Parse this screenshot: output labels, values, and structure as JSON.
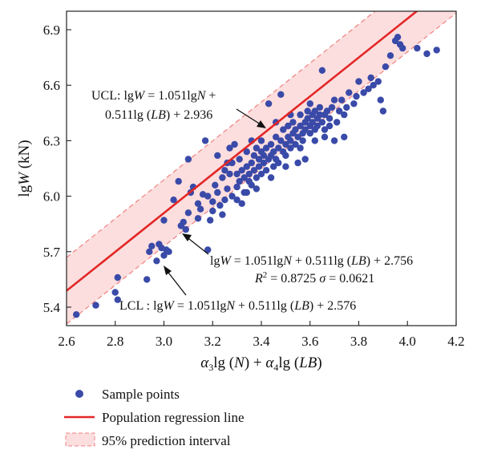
{
  "chart_data": {
    "type": "scatter",
    "xlim": [
      2.6,
      4.2
    ],
    "ylim": [
      5.3,
      7.0
    ],
    "x_ticks": [
      "2.6",
      "2.8",
      "3.0",
      "3.2",
      "3.4",
      "3.6",
      "3.8",
      "4.0",
      "4.2"
    ],
    "y_ticks": [
      "5.4",
      "5.7",
      "6.0",
      "6.3",
      "6.6",
      "6.9"
    ],
    "grid": false,
    "legend_placement": "bottom",
    "colors": {
      "points": "#3a4aa8",
      "regression": "#e32626",
      "band_fill": "#fcdede",
      "band_edge": "#f08080"
    },
    "regression": {
      "slope": 1.051,
      "intercept": 2.756,
      "ucl_intercept": 2.936,
      "lcl_intercept": 2.576
    },
    "annotations": {
      "ucl_line1": "UCL: lgW = 1.051lgN +",
      "ucl_line2": "0.511lg (LB) + 2.936",
      "reg_line1": "lgW = 1.051lgN + 0.511lg (LB) + 2.756",
      "reg_line2": "R² = 0.8725 σ = 0.0621",
      "lcl_line1": "LCL : lgW = 1.051lgN + 0.511lg (LB) + 2.576"
    },
    "legend": [
      "Sample points",
      "Population regression line",
      "95% prediction interval"
    ],
    "points": [
      [
        2.64,
        5.36
      ],
      [
        2.72,
        5.41
      ],
      [
        2.8,
        5.48
      ],
      [
        2.81,
        5.44
      ],
      [
        2.81,
        5.56
      ],
      [
        2.93,
        5.55
      ],
      [
        2.94,
        5.7
      ],
      [
        2.95,
        5.73
      ],
      [
        2.97,
        5.65
      ],
      [
        2.98,
        5.74
      ],
      [
        2.99,
        5.72
      ],
      [
        3.0,
        5.68
      ],
      [
        3.01,
        5.71
      ],
      [
        3.0,
        5.87
      ],
      [
        3.02,
        5.7
      ],
      [
        3.04,
        5.98
      ],
      [
        3.06,
        6.08
      ],
      [
        3.07,
        5.84
      ],
      [
        3.08,
        5.86
      ],
      [
        3.09,
        5.82
      ],
      [
        3.1,
        5.91
      ],
      [
        3.11,
        6.02
      ],
      [
        3.1,
        6.2
      ],
      [
        3.12,
        6.05
      ],
      [
        3.14,
        5.88
      ],
      [
        3.15,
        5.93
      ],
      [
        3.16,
        6.01
      ],
      [
        3.17,
        6.3
      ],
      [
        3.18,
        5.71
      ],
      [
        3.19,
        5.87
      ],
      [
        3.2,
        5.97
      ],
      [
        3.21,
        6.06
      ],
      [
        3.22,
        6.02
      ],
      [
        3.23,
        5.95
      ],
      [
        3.24,
        6.1
      ],
      [
        3.25,
        5.98
      ],
      [
        3.25,
        6.14
      ],
      [
        3.26,
        6.04
      ],
      [
        3.27,
        6.12
      ],
      [
        3.28,
        6.0
      ],
      [
        3.28,
        6.18
      ],
      [
        3.29,
        6.28
      ],
      [
        3.3,
        6.05
      ],
      [
        3.3,
        6.12
      ],
      [
        3.31,
        6.08
      ],
      [
        3.31,
        6.2
      ],
      [
        3.32,
        5.96
      ],
      [
        3.32,
        6.14
      ],
      [
        3.33,
        6.1
      ],
      [
        3.33,
        6.02
      ],
      [
        3.34,
        6.16
      ],
      [
        3.34,
        6.24
      ],
      [
        3.35,
        6.08
      ],
      [
        3.35,
        6.12
      ],
      [
        3.36,
        6.06
      ],
      [
        3.36,
        6.18
      ],
      [
        3.37,
        6.14
      ],
      [
        3.37,
        6.22
      ],
      [
        3.38,
        6.1
      ],
      [
        3.38,
        6.26
      ],
      [
        3.39,
        6.16
      ],
      [
        3.39,
        6.2
      ],
      [
        3.4,
        6.12
      ],
      [
        3.4,
        6.24
      ],
      [
        3.4,
        6.3
      ],
      [
        3.41,
        6.18
      ],
      [
        3.41,
        6.22
      ],
      [
        3.42,
        6.14
      ],
      [
        3.42,
        6.26
      ],
      [
        3.43,
        6.2
      ],
      [
        3.43,
        6.5
      ],
      [
        3.44,
        6.22
      ],
      [
        3.44,
        6.28
      ],
      [
        3.45,
        6.16
      ],
      [
        3.45,
        6.24
      ],
      [
        3.46,
        6.2
      ],
      [
        3.46,
        6.32
      ],
      [
        3.47,
        6.26
      ],
      [
        3.47,
        6.18
      ],
      [
        3.48,
        6.3
      ],
      [
        3.48,
        6.55
      ],
      [
        3.49,
        6.24
      ],
      [
        3.49,
        6.36
      ],
      [
        3.5,
        6.28
      ],
      [
        3.5,
        6.22
      ],
      [
        3.51,
        6.32
      ],
      [
        3.51,
        6.38
      ],
      [
        3.52,
        6.26
      ],
      [
        3.52,
        6.3
      ],
      [
        3.53,
        6.34
      ],
      [
        3.53,
        6.4
      ],
      [
        3.54,
        6.28
      ],
      [
        3.54,
        6.36
      ],
      [
        3.55,
        6.32
      ],
      [
        3.55,
        6.18
      ],
      [
        3.56,
        6.38
      ],
      [
        3.56,
        6.44
      ],
      [
        3.57,
        6.34
      ],
      [
        3.57,
        6.3
      ],
      [
        3.58,
        6.4
      ],
      [
        3.58,
        6.36
      ],
      [
        3.59,
        6.42
      ],
      [
        3.59,
        6.46
      ],
      [
        3.6,
        6.38
      ],
      [
        3.6,
        6.34
      ],
      [
        3.61,
        6.44
      ],
      [
        3.61,
        6.4
      ],
      [
        3.62,
        6.36
      ],
      [
        3.62,
        6.46
      ],
      [
        3.63,
        6.42
      ],
      [
        3.63,
        6.38
      ],
      [
        3.64,
        6.44
      ],
      [
        3.64,
        6.48
      ],
      [
        3.65,
        6.4
      ],
      [
        3.65,
        6.68
      ],
      [
        3.66,
        6.44
      ],
      [
        3.66,
        6.36
      ],
      [
        3.67,
        6.46
      ],
      [
        3.68,
        6.42
      ],
      [
        3.69,
        6.48
      ],
      [
        3.7,
        6.3
      ],
      [
        3.71,
        6.4
      ],
      [
        3.72,
        6.46
      ],
      [
        3.73,
        6.52
      ],
      [
        3.74,
        6.44
      ],
      [
        3.75,
        6.48
      ],
      [
        3.76,
        6.56
      ],
      [
        3.78,
        6.5
      ],
      [
        3.79,
        6.54
      ],
      [
        3.8,
        6.62
      ],
      [
        3.82,
        6.56
      ],
      [
        3.84,
        6.58
      ],
      [
        3.85,
        6.64
      ],
      [
        3.86,
        6.6
      ],
      [
        3.88,
        6.62
      ],
      [
        3.89,
        6.52
      ],
      [
        3.9,
        6.46
      ],
      [
        3.91,
        6.7
      ],
      [
        3.93,
        6.76
      ],
      [
        3.95,
        6.84
      ],
      [
        3.96,
        6.86
      ],
      [
        3.97,
        6.82
      ],
      [
        3.98,
        6.8
      ],
      [
        4.04,
        6.8
      ],
      [
        4.08,
        6.77
      ],
      [
        4.12,
        6.79
      ],
      [
        3.22,
        6.22
      ],
      [
        3.26,
        6.18
      ],
      [
        3.36,
        6.3
      ],
      [
        3.46,
        6.4
      ],
      [
        3.56,
        6.26
      ],
      [
        3.62,
        6.3
      ],
      [
        3.68,
        6.38
      ],
      [
        3.3,
        5.98
      ],
      [
        3.2,
        5.92
      ],
      [
        3.38,
        6.04
      ],
      [
        3.44,
        6.1
      ],
      [
        3.5,
        6.16
      ],
      [
        3.58,
        6.2
      ],
      [
        3.34,
        6.02
      ],
      [
        3.27,
        6.26
      ],
      [
        3.18,
        6.0
      ],
      [
        3.14,
        5.96
      ],
      [
        3.24,
        5.9
      ],
      [
        3.6,
        6.5
      ],
      [
        3.52,
        6.44
      ],
      [
        3.7,
        6.52
      ],
      [
        3.74,
        6.32
      ],
      [
        3.66,
        6.32
      ]
    ]
  }
}
